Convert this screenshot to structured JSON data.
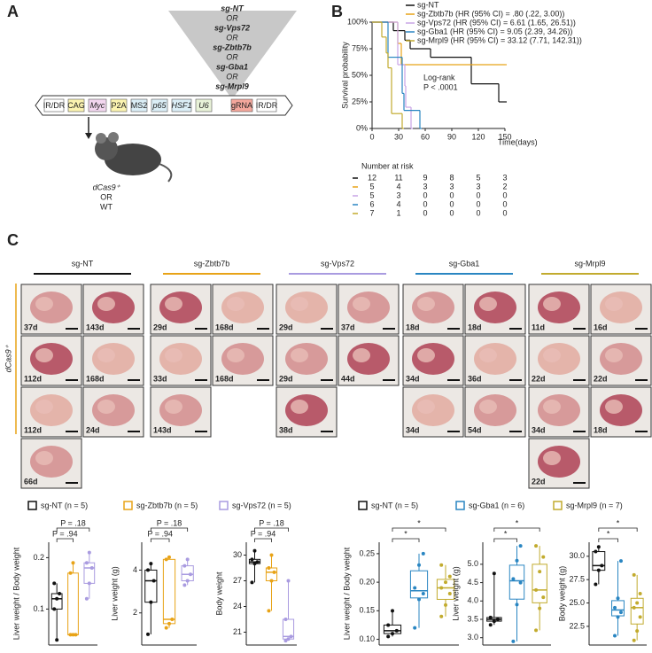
{
  "panel_a": {
    "label": "A",
    "guides": [
      "sg-NT",
      "OR",
      "sg-Vps72",
      "OR",
      "sg-Zbtb7b",
      "OR",
      "sg-Gba1",
      "OR",
      "sg-Mrpl9"
    ],
    "construct": [
      "IR/DR",
      "CAG",
      "Myc",
      "P2A",
      "MS2",
      "p65",
      "HSF1",
      "U6",
      "gRNA",
      "IR/DR"
    ],
    "mouse": [
      "dCas9⁺",
      "OR",
      "WT"
    ]
  },
  "panel_b": {
    "label": "B"
  },
  "panel_c": {
    "label": "C",
    "side_label": "dCas9⁺",
    "groups": [
      {
        "name": "sg-NT",
        "color": "#111111",
        "photos": [
          [
            "37d",
            "143d"
          ],
          [
            "112d",
            "168d"
          ],
          [
            "112d",
            "24d"
          ],
          [
            "66d"
          ]
        ]
      },
      {
        "name": "sg-Zbtb7b",
        "color": "#e8a317",
        "photos": [
          [
            "29d",
            "168d"
          ],
          [
            "33d",
            "168d"
          ],
          [
            "143d"
          ]
        ]
      },
      {
        "name": "sg-Vps72",
        "color": "#a99be0",
        "photos": [
          [
            "29d",
            "37d"
          ],
          [
            "29d",
            "44d"
          ],
          [
            "38d"
          ]
        ]
      },
      {
        "name": "sg-Gba1",
        "color": "#2a86c2",
        "photos": [
          [
            "18d",
            "18d"
          ],
          [
            "34d",
            "36d"
          ],
          [
            "34d",
            "54d"
          ]
        ]
      },
      {
        "name": "sg-Mrpl9",
        "color": "#c2ab2e",
        "photos": [
          [
            "11d",
            "16d"
          ],
          [
            "22d",
            "22d"
          ],
          [
            "34d",
            "18d"
          ],
          [
            "22d"
          ]
        ]
      }
    ],
    "box_legends": [
      [
        {
          "name": "sg-NT (n = 5)",
          "color": "#111111"
        },
        {
          "name": "sg-Zbtb7b (n = 5)",
          "color": "#e8a317"
        },
        {
          "name": "sg-Vps72 (n = 5)",
          "color": "#a99be0"
        }
      ],
      [
        {
          "name": "sg-NT (n = 5)",
          "color": "#111111"
        },
        {
          "name": "sg-Gba1 (n = 6)",
          "color": "#2a86c2"
        },
        {
          "name": "sg-Mrpl9 (n = 7)",
          "color": "#c2ab2e"
        }
      ]
    ]
  },
  "chart_data": [
    {
      "type": "line",
      "ylabel": "Survival probability",
      "xlabel": "Time(days)",
      "xlim": [
        0,
        150
      ],
      "ylim": [
        0,
        100
      ],
      "xticks": [
        0,
        30,
        60,
        90,
        120,
        150
      ],
      "yticks": [
        {
          "value": 0,
          "label": "0%"
        },
        {
          "value": 25,
          "label": "25%"
        },
        {
          "value": 50,
          "label": "50%"
        },
        {
          "value": 75,
          "label": "75%"
        },
        {
          "value": 100,
          "label": "100%"
        }
      ],
      "series": [
        {
          "name": "sg-NT",
          "color": "#111111",
          "x": [
            0,
            24,
            37,
            43,
            66,
            112,
            143,
            150
          ],
          "values": [
            100,
            92,
            83,
            75,
            67,
            42,
            25,
            25
          ]
        },
        {
          "name": "sg-Zbtb7b (HR (95% CI) = .80 (.22, 3.00))",
          "color": "#e8a317",
          "x": [
            0,
            29,
            33,
            150
          ],
          "values": [
            100,
            80,
            60,
            60
          ]
        },
        {
          "name": "sg-Vps72 (HR (95% CI) = 6.61 (1.65, 26.51))",
          "color": "#c9a4e6",
          "x": [
            0,
            29,
            37,
            38,
            44
          ],
          "values": [
            100,
            60,
            40,
            20,
            0
          ]
        },
        {
          "name": "sg-Gba1 (HR (95% CI) = 9.05 (2.39, 34.26))",
          "color": "#2a86c2",
          "x": [
            0,
            18,
            34,
            36,
            54
          ],
          "values": [
            100,
            67,
            33,
            17,
            0
          ]
        },
        {
          "name": "sg-Mrpl9 (HR (95% CI) = 33.12 (7.71, 142.31))",
          "color": "#c2ab2e",
          "x": [
            0,
            11,
            16,
            18,
            22,
            34
          ],
          "values": [
            100,
            86,
            71,
            57,
            14,
            0
          ]
        }
      ],
      "annotation": [
        "Log-rank",
        "P < .0001"
      ],
      "risk_table": {
        "title": "Number at risk",
        "rows": [
          [
            12,
            11,
            9,
            8,
            5,
            3
          ],
          [
            5,
            4,
            3,
            3,
            3,
            2
          ],
          [
            5,
            3,
            0,
            0,
            0,
            0
          ],
          [
            6,
            4,
            0,
            0,
            0,
            0
          ],
          [
            7,
            1,
            0,
            0,
            0,
            0
          ]
        ]
      }
    },
    {
      "type": "box",
      "legend": 0,
      "ylabel": "Liver weight / Body weight",
      "ylim": [
        0.03,
        0.23
      ],
      "yticks": [
        0.1,
        0.2
      ],
      "values": [
        [
          0.1,
          0.12,
          0.13,
          0.15,
          0.04
        ],
        [
          0.05,
          0.05,
          0.05,
          0.17,
          0.19
        ],
        [
          0.12,
          0.15,
          0.18,
          0.19,
          0.21
        ]
      ],
      "annotations": [
        "P = .94",
        "P = .18"
      ]
    },
    {
      "type": "box",
      "legend": 0,
      "ylabel": "Liver weight (g)",
      "ylim": [
        0.5,
        5.3
      ],
      "yticks": [
        2,
        4
      ],
      "values": [
        [
          1,
          2.5,
          3.5,
          4,
          4.3
        ],
        [
          1.3,
          1.5,
          1.7,
          4.5,
          4.6
        ],
        [
          3.3,
          3.5,
          3.8,
          4.2,
          4.5
        ]
      ],
      "annotations": [
        "P = .94",
        "P = .18"
      ]
    },
    {
      "type": "box",
      "legend": 0,
      "ylabel": "Body weight",
      "ylim": [
        19.5,
        31.5
      ],
      "yticks": [
        21,
        24,
        27,
        30
      ],
      "values": [
        [
          26.8,
          29,
          29.2,
          29.5,
          30.5
        ],
        [
          23.5,
          27,
          28,
          28.5,
          30
        ],
        [
          20,
          20.2,
          20.5,
          22.5,
          27
        ]
      ],
      "annotations": [
        "P = .94",
        "P = .18"
      ]
    },
    {
      "type": "box",
      "legend": 1,
      "ylabel": "Liver weight / Body weight",
      "ylim": [
        0.09,
        0.27
      ],
      "yticks": [
        {
          "value": 0.1,
          "label": "0.10"
        },
        0.15,
        {
          "value": 0.2,
          "label": "0.20"
        },
        0.25
      ],
      "values": [
        [
          0.105,
          0.11,
          0.115,
          0.125,
          0.15
        ],
        [
          0.12,
          0.17,
          0.18,
          0.19,
          0.23,
          0.25
        ],
        [
          0.14,
          0.16,
          0.18,
          0.19,
          0.2,
          0.21,
          0.23
        ]
      ],
      "annotations": [
        "*",
        "*"
      ]
    },
    {
      "type": "box",
      "legend": 1,
      "ylabel": "Liver weight (g)",
      "ylim": [
        2.8,
        5.6
      ],
      "yticks": [
        {
          "value": 3,
          "label": "3.0"
        },
        3.5,
        {
          "value": 4,
          "label": "4.0"
        },
        4.5,
        {
          "value": 5,
          "label": "5.0"
        }
      ],
      "values": [
        [
          3.35,
          3.45,
          3.5,
          3.55,
          4.75
        ],
        [
          2.9,
          3.9,
          4.5,
          4.6,
          5.1,
          5.5
        ],
        [
          3.2,
          3.8,
          4.1,
          4.3,
          4.8,
          5.2,
          5.5
        ]
      ],
      "annotations": [
        "*",
        "*"
      ]
    },
    {
      "type": "box",
      "legend": 1,
      "ylabel": "Body weight (g)",
      "ylim": [
        20.5,
        31.5
      ],
      "yticks": [
        22.5,
        {
          "value": 25,
          "label": "25.0"
        },
        27.5,
        {
          "value": 30,
          "label": "30.0"
        }
      ],
      "values": [
        [
          27,
          28.5,
          29,
          30.5,
          31
        ],
        [
          21.5,
          23.5,
          24,
          24.5,
          25.5,
          29.5
        ],
        [
          21,
          22,
          23.5,
          24.5,
          25,
          26,
          28
        ]
      ],
      "annotations": [
        "*",
        "*"
      ]
    }
  ]
}
